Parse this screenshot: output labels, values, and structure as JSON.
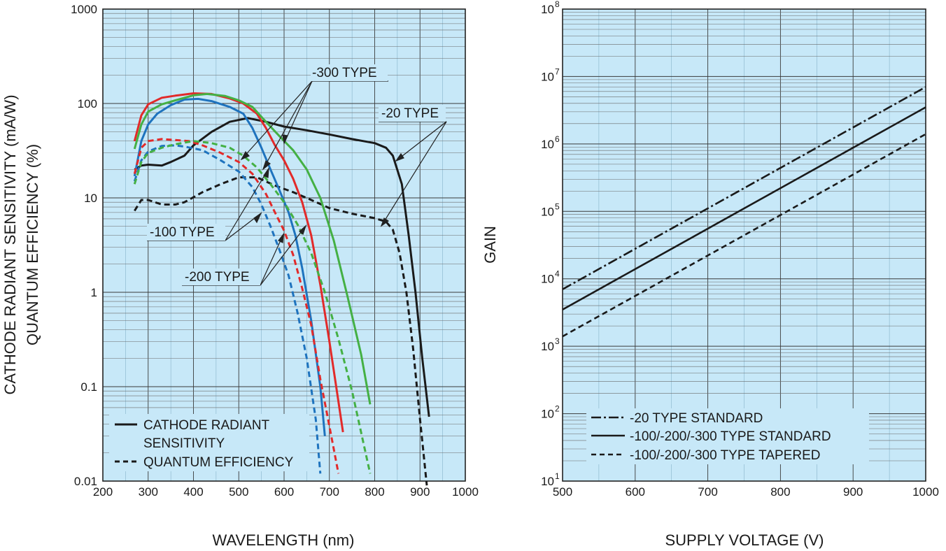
{
  "chart_data": [
    {
      "type": "line",
      "yscale": "log",
      "xlabel": "WAVELENGTH (nm)",
      "ylabel_line1": "CATHODE RADIANT SENSITIVITY (mA/W)",
      "ylabel_line2": "QUANTUM EFFICIENCY (%)",
      "xlim": [
        200,
        1000
      ],
      "ylim": [
        0.01,
        1000
      ],
      "x_ticks": [
        "200",
        "300",
        "400",
        "500",
        "600",
        "700",
        "800",
        "900",
        "1000"
      ],
      "y_ticks": [
        "0.01",
        "0.1",
        "1",
        "10",
        "100",
        "1000"
      ],
      "annotations": [
        "-300 TYPE",
        "-20 TYPE",
        "-100 TYPE",
        "-200 TYPE"
      ],
      "legend": [
        "CATHODE RADIANT",
        "SENSITIVITY",
        "QUANTUM EFFICIENCY"
      ],
      "series": [
        {
          "name": "-20 TYPE radiant sensitivity",
          "color": "#1a1a1a",
          "dash": "solid",
          "points": [
            [
              270,
              20
            ],
            [
              285,
              22
            ],
            [
              300,
              22.5
            ],
            [
              330,
              22
            ],
            [
              350,
              24
            ],
            [
              380,
              28
            ],
            [
              400,
              36
            ],
            [
              440,
              50
            ],
            [
              480,
              64
            ],
            [
              520,
              70
            ],
            [
              560,
              64
            ],
            [
              600,
              57
            ],
            [
              650,
              52
            ],
            [
              700,
              47
            ],
            [
              750,
              42
            ],
            [
              800,
              38
            ],
            [
              825,
              34
            ],
            [
              840,
              28
            ],
            [
              860,
              14
            ],
            [
              875,
              4
            ],
            [
              890,
              1.0
            ],
            [
              905,
              0.2
            ],
            [
              920,
              0.048
            ]
          ]
        },
        {
          "name": "-20 TYPE quantum efficiency",
          "color": "#1a1a1a",
          "dash": "dash",
          "points": [
            [
              270,
              7.3
            ],
            [
              285,
              9.5
            ],
            [
              300,
              9.5
            ],
            [
              330,
              8.5
            ],
            [
              360,
              8.5
            ],
            [
              380,
              9
            ],
            [
              420,
              11.5
            ],
            [
              460,
              14
            ],
            [
              500,
              16.5
            ],
            [
              540,
              16.5
            ],
            [
              580,
              13.5
            ],
            [
              620,
              11.5
            ],
            [
              660,
              9.5
            ],
            [
              700,
              7.8
            ],
            [
              750,
              6.8
            ],
            [
              800,
              6.1
            ],
            [
              825,
              5.6
            ],
            [
              840,
              4.6
            ],
            [
              855,
              2.6
            ],
            [
              870,
              1.0
            ],
            [
              885,
              0.25
            ],
            [
              900,
              0.045
            ],
            [
              915,
              0.009
            ]
          ]
        },
        {
          "name": "-100 TYPE radiant sensitivity",
          "color": "#1e73be",
          "dash": "solid",
          "points": [
            [
              270,
              17
            ],
            [
              285,
              40
            ],
            [
              300,
              60
            ],
            [
              320,
              78
            ],
            [
              350,
              96
            ],
            [
              380,
              110
            ],
            [
              410,
              112
            ],
            [
              440,
              106
            ],
            [
              480,
              92
            ],
            [
              510,
              78
            ],
            [
              530,
              55
            ],
            [
              550,
              34
            ],
            [
              570,
              20
            ],
            [
              590,
              12
            ],
            [
              610,
              7
            ],
            [
              625,
              4
            ],
            [
              640,
              1.8
            ],
            [
              660,
              0.5
            ],
            [
              680,
              0.1
            ],
            [
              690,
              0.03
            ]
          ]
        },
        {
          "name": "-100 TYPE quantum efficiency",
          "color": "#1e73be",
          "dash": "dash",
          "points": [
            [
              270,
              15
            ],
            [
              285,
              25
            ],
            [
              300,
              31
            ],
            [
              330,
              35.5
            ],
            [
              360,
              36
            ],
            [
              380,
              35
            ],
            [
              420,
              32
            ],
            [
              460,
              25
            ],
            [
              500,
              19
            ],
            [
              530,
              13
            ],
            [
              550,
              8.5
            ],
            [
              570,
              5
            ],
            [
              590,
              2.8
            ],
            [
              610,
              1.5
            ],
            [
              630,
              0.6
            ],
            [
              650,
              0.2
            ],
            [
              670,
              0.045
            ],
            [
              680,
              0.012
            ]
          ]
        },
        {
          "name": "-200 TYPE radiant sensitivity",
          "color": "#e22a2a",
          "dash": "solid",
          "points": [
            [
              270,
              40
            ],
            [
              285,
              75
            ],
            [
              300,
              98
            ],
            [
              330,
              115
            ],
            [
              360,
              121
            ],
            [
              400,
              128
            ],
            [
              440,
              126
            ],
            [
              480,
              113
            ],
            [
              510,
              100
            ],
            [
              540,
              78
            ],
            [
              560,
              55
            ],
            [
              580,
              36
            ],
            [
              600,
              25
            ],
            [
              620,
              16
            ],
            [
              640,
              9
            ],
            [
              660,
              4
            ],
            [
              680,
              1.2
            ],
            [
              700,
              0.3
            ],
            [
              715,
              0.1
            ],
            [
              730,
              0.033
            ]
          ]
        },
        {
          "name": "-200 TYPE quantum efficiency",
          "color": "#e22a2a",
          "dash": "dash",
          "points": [
            [
              270,
              18
            ],
            [
              285,
              34
            ],
            [
              300,
              40
            ],
            [
              330,
              42
            ],
            [
              360,
              41
            ],
            [
              390,
              40
            ],
            [
              420,
              36
            ],
            [
              460,
              30
            ],
            [
              500,
              24
            ],
            [
              530,
              18
            ],
            [
              560,
              11
            ],
            [
              580,
              7
            ],
            [
              600,
              4.5
            ],
            [
              620,
              2.5
            ],
            [
              640,
              1.1
            ],
            [
              660,
              0.45
            ],
            [
              680,
              0.12
            ],
            [
              700,
              0.038
            ],
            [
              720,
              0.012
            ]
          ]
        },
        {
          "name": "-300 TYPE radiant sensitivity",
          "color": "#44b044",
          "dash": "solid",
          "points": [
            [
              270,
              33
            ],
            [
              285,
              60
            ],
            [
              300,
              82
            ],
            [
              330,
              98
            ],
            [
              360,
              108
            ],
            [
              400,
              122
            ],
            [
              430,
              126
            ],
            [
              470,
              120
            ],
            [
              500,
              108
            ],
            [
              530,
              92
            ],
            [
              560,
              64
            ],
            [
              590,
              45
            ],
            [
              620,
              32
            ],
            [
              650,
              20
            ],
            [
              680,
              10
            ],
            [
              710,
              3.5
            ],
            [
              740,
              0.9
            ],
            [
              770,
              0.22
            ],
            [
              790,
              0.065
            ]
          ]
        },
        {
          "name": "-300 TYPE quantum efficiency",
          "color": "#44b044",
          "dash": "dash",
          "points": [
            [
              270,
              14
            ],
            [
              285,
              24
            ],
            [
              300,
              30
            ],
            [
              330,
              34
            ],
            [
              360,
              37
            ],
            [
              400,
              40
            ],
            [
              440,
              38
            ],
            [
              480,
              34
            ],
            [
              510,
              28
            ],
            [
              540,
              21
            ],
            [
              570,
              14
            ],
            [
              600,
              9
            ],
            [
              630,
              5.2
            ],
            [
              660,
              2.6
            ],
            [
              690,
              1.0
            ],
            [
              720,
              0.32
            ],
            [
              750,
              0.09
            ],
            [
              790,
              0.012
            ]
          ]
        }
      ]
    },
    {
      "type": "line",
      "yscale": "log",
      "xlabel": "SUPPLY VOLTAGE (V)",
      "ylabel": "GAIN",
      "xlim": [
        500,
        1000
      ],
      "ylim": [
        10,
        100000000
      ],
      "x_ticks": [
        "500",
        "600",
        "700",
        "800",
        "900",
        "1000"
      ],
      "y_ticks": [
        {
          "base": "10",
          "exp": "1"
        },
        {
          "base": "10",
          "exp": "2"
        },
        {
          "base": "10",
          "exp": "3"
        },
        {
          "base": "10",
          "exp": "4"
        },
        {
          "base": "10",
          "exp": "5"
        },
        {
          "base": "10",
          "exp": "6"
        },
        {
          "base": "10",
          "exp": "7"
        },
        {
          "base": "10",
          "exp": "8"
        }
      ],
      "series": [
        {
          "name": "-20 TYPE STANDARD",
          "color": "#1a1a1a",
          "dash": "dashdot",
          "points": [
            [
              500,
              7000
            ],
            [
              1000,
              7000000
            ]
          ]
        },
        {
          "name": "-100/-200/-300 TYPE STANDARD",
          "color": "#1a1a1a",
          "dash": "solid",
          "points": [
            [
              500,
              3500
            ],
            [
              1000,
              3500000
            ]
          ]
        },
        {
          "name": "-100/-200/-300 TYPE TAPERED",
          "color": "#1a1a1a",
          "dash": "dash",
          "points": [
            [
              500,
              1400
            ],
            [
              1000,
              1400000
            ]
          ]
        }
      ]
    }
  ]
}
